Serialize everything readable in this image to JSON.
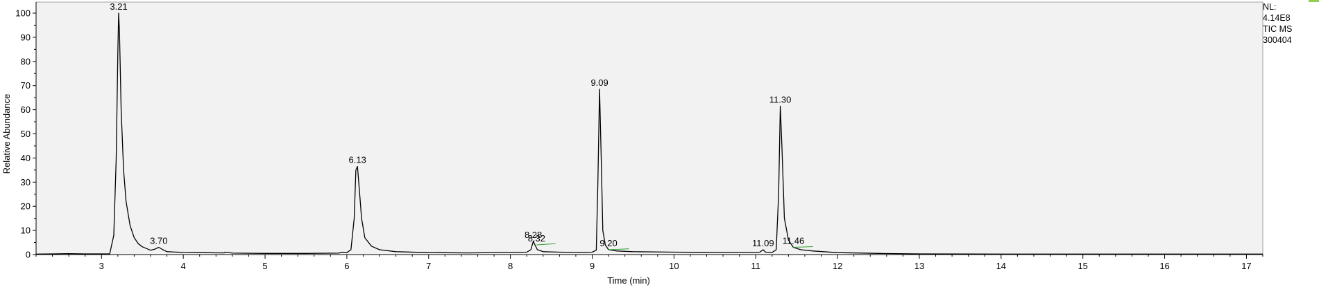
{
  "info": {
    "nl_label": "NL:",
    "nl_value": "4.14E8",
    "trace": "TIC  MS",
    "file": "300404"
  },
  "colors": {
    "plot_background": "#f2f2f2",
    "trace": "#000000",
    "baseline_marker": "#2e9e2e",
    "corner_mark": "#8fd14f"
  },
  "chart_data": {
    "type": "line",
    "title": "",
    "xlabel": "Time (min)",
    "ylabel": "Relative Abundance",
    "xlim": [
      2.2,
      17.2
    ],
    "ylim": [
      0,
      100
    ],
    "x_ticks": [
      3,
      4,
      5,
      6,
      7,
      8,
      9,
      10,
      11,
      12,
      13,
      14,
      15,
      16,
      17
    ],
    "y_ticks": [
      0,
      10,
      20,
      30,
      40,
      50,
      60,
      70,
      80,
      90,
      100
    ],
    "grid": false,
    "series": [
      {
        "x": [
          2.2,
          2.4,
          2.6,
          2.8,
          3.0,
          3.1,
          3.15,
          3.18,
          3.2,
          3.21,
          3.22,
          3.24,
          3.27,
          3.3,
          3.35,
          3.4,
          3.45,
          3.5,
          3.6,
          3.65,
          3.7,
          3.75,
          3.8,
          4.0,
          4.2,
          4.5,
          4.52,
          4.6,
          5.0,
          5.5,
          5.9,
          5.95,
          6.0,
          6.05,
          6.09,
          6.11,
          6.13,
          6.15,
          6.18,
          6.22,
          6.3,
          6.4,
          6.6,
          7.0,
          7.5,
          8.0,
          8.2,
          8.25,
          8.28,
          8.3,
          8.33,
          8.4,
          8.6,
          8.8,
          9.0,
          9.05,
          9.07,
          9.09,
          9.11,
          9.13,
          9.16,
          9.2,
          9.3,
          9.5,
          10.0,
          10.5,
          11.0,
          11.05,
          11.09,
          11.12,
          11.2,
          11.25,
          11.28,
          11.3,
          11.32,
          11.35,
          11.4,
          11.46,
          11.55,
          11.7,
          12.0,
          12.5,
          13.0,
          14.0,
          15.0,
          16.0,
          17.0,
          17.2
        ],
        "y": [
          0.2,
          0.3,
          0.4,
          0.3,
          0.3,
          0.3,
          8.0,
          40.0,
          85.0,
          100.0,
          92.0,
          60.0,
          35.0,
          22.0,
          12.0,
          7.0,
          4.5,
          3.2,
          1.8,
          2.2,
          3.0,
          2.0,
          1.2,
          0.9,
          0.8,
          0.7,
          1.0,
          0.6,
          0.5,
          0.5,
          0.6,
          1.0,
          0.8,
          2.0,
          15.0,
          35.0,
          36.5,
          28.0,
          15.0,
          7.0,
          3.5,
          2.0,
          1.2,
          0.8,
          0.7,
          0.9,
          1.0,
          2.0,
          5.5,
          4.0,
          2.0,
          1.2,
          1.0,
          0.9,
          1.0,
          1.8,
          30.0,
          68.5,
          40.0,
          10.0,
          4.0,
          2.0,
          1.5,
          1.2,
          1.0,
          0.9,
          0.9,
          1.0,
          2.0,
          1.0,
          0.9,
          2.0,
          25.0,
          61.5,
          45.0,
          15.0,
          6.0,
          3.0,
          2.0,
          1.5,
          0.8,
          0.5,
          0.3,
          0.2,
          0.2,
          0.2,
          0.2,
          0.2
        ]
      }
    ],
    "peak_labels": [
      {
        "x": 3.21,
        "y": 100.0,
        "label": "3.21"
      },
      {
        "x": 3.7,
        "y": 3.0,
        "label": "3.70"
      },
      {
        "x": 6.13,
        "y": 36.5,
        "label": "6.13"
      },
      {
        "x": 8.28,
        "y": 5.5,
        "label": "8.28"
      },
      {
        "x": 8.32,
        "y": 4.0,
        "label": "8.32"
      },
      {
        "x": 9.09,
        "y": 68.5,
        "label": "9.09"
      },
      {
        "x": 9.2,
        "y": 2.0,
        "label": "9.20"
      },
      {
        "x": 11.09,
        "y": 2.0,
        "label": "11.09"
      },
      {
        "x": 11.3,
        "y": 61.5,
        "label": "11.30"
      },
      {
        "x": 11.46,
        "y": 3.0,
        "label": "11.46"
      }
    ],
    "baseline_markers": [
      {
        "x": [
          8.32,
          8.55
        ],
        "y": [
          4.0,
          4.5
        ]
      },
      {
        "x": [
          9.2,
          9.45
        ],
        "y": [
          2.0,
          2.4
        ]
      },
      {
        "x": [
          11.46,
          11.7
        ],
        "y": [
          3.0,
          3.3
        ]
      }
    ]
  }
}
